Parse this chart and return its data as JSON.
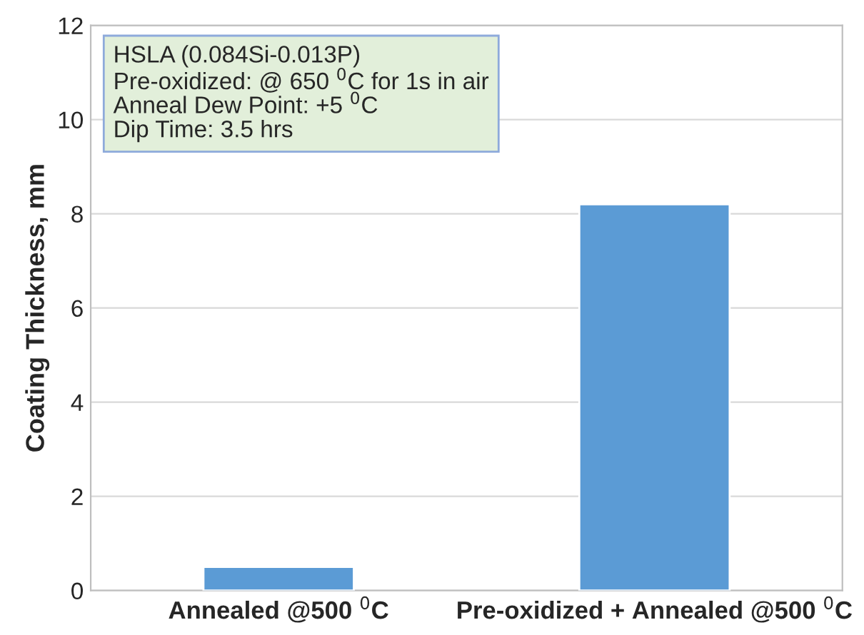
{
  "chart_data": {
    "type": "bar",
    "ylabel": "Coating Thickness, mm",
    "categories": [
      "Annealed @500 $^{0}$C",
      "Pre-oxidized + Annealed @500 $^{0}$C"
    ],
    "values": [
      0.5,
      8.2
    ],
    "color": "#5b9bd5",
    "ylim": [
      0,
      12
    ],
    "yticks": [
      0,
      2,
      4,
      6,
      8,
      10,
      12
    ],
    "grid": "y",
    "annotations": [
      "HSLA (0.084Si-0.013P)",
      "Pre-oxidized: @ 650 $^{0}$C for 1s in air",
      "Anneal Dew Point: +5 $^{0}$C",
      "Dip Time: 3.5 hrs"
    ]
  }
}
